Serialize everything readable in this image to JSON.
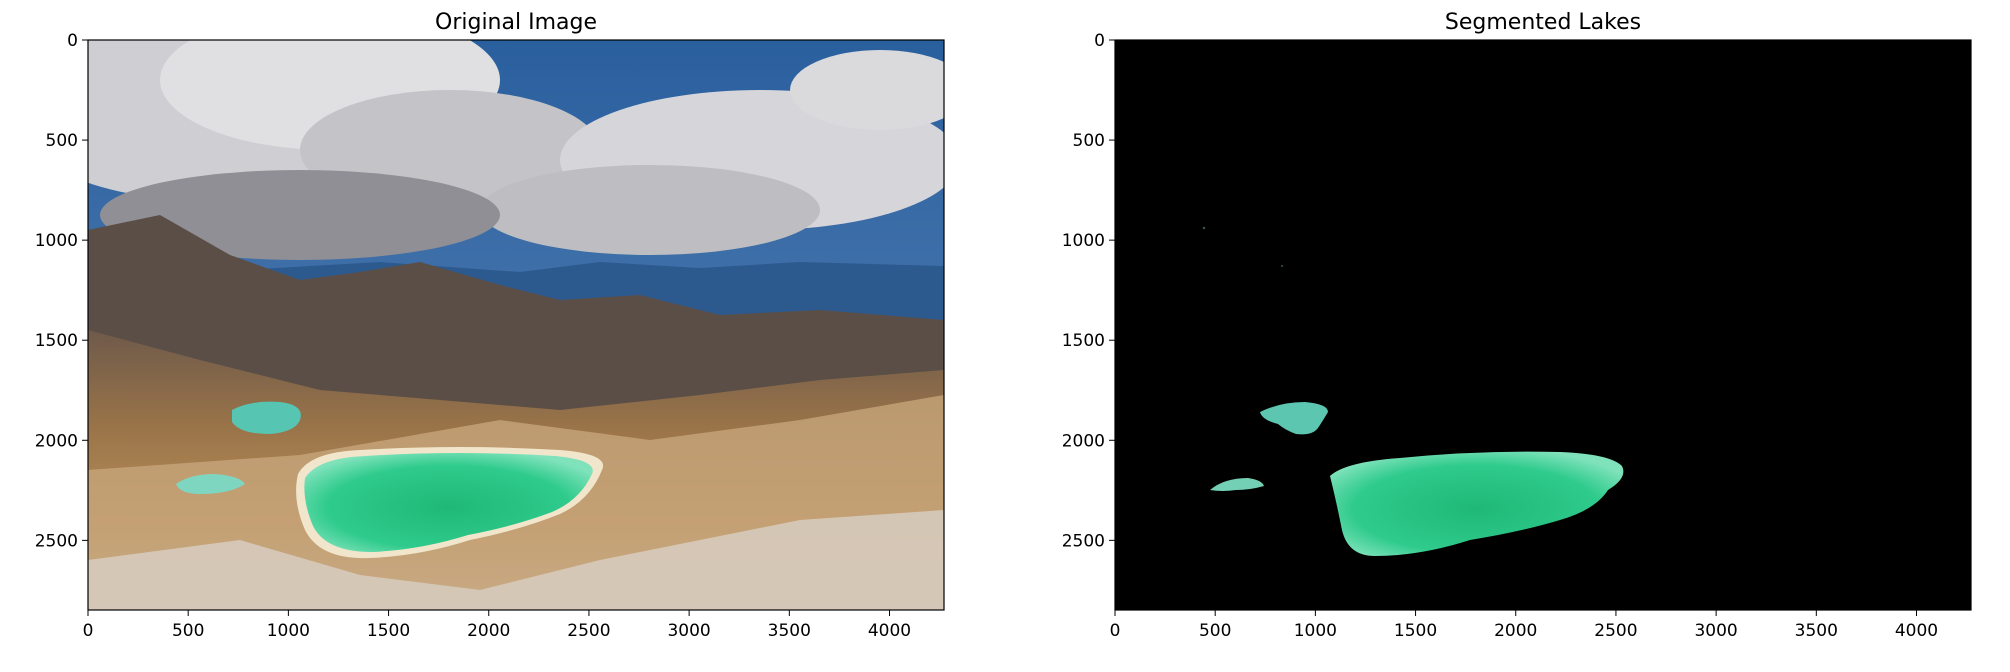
{
  "chart_data": [
    {
      "type": "image",
      "title": "Original Image",
      "xlim": [
        0,
        4272
      ],
      "ylim": [
        2848,
        0
      ],
      "xticks": [
        0,
        500,
        1000,
        1500,
        2000,
        2500,
        3000,
        3500,
        4000
      ],
      "yticks": [
        0,
        500,
        1000,
        1500,
        2000,
        2500
      ],
      "content": "landscape-photo",
      "grid": false
    },
    {
      "type": "image",
      "title": "Segmented Lakes",
      "xlim": [
        0,
        4272
      ],
      "ylim": [
        2848,
        0
      ],
      "xticks": [
        0,
        500,
        1000,
        1500,
        2000,
        2500,
        3000,
        3500,
        4000
      ],
      "yticks": [
        0,
        500,
        1000,
        1500,
        2000,
        2500
      ],
      "content": "segmentation-mask",
      "mask_background": "#000000",
      "lake_color": "#35c98e",
      "grid": false
    }
  ],
  "colors": {
    "axis": "#000000",
    "lake_light": "#6ee0b0",
    "lake_dark": "#20b877",
    "sky_blue": "#2f68a8",
    "cloud": "#d9d9dc",
    "terrain": "#a0764a"
  }
}
